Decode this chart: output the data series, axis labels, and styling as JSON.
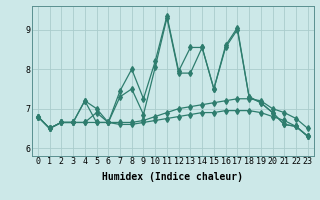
{
  "xlabel": "Humidex (Indice chaleur)",
  "xlim": [
    -0.5,
    23.5
  ],
  "ylim": [
    5.8,
    9.6
  ],
  "bg_color": "#cce8e8",
  "line_color": "#2e7d6e",
  "grid_color": "#aacccc",
  "series": [
    [
      6.8,
      6.5,
      6.65,
      6.65,
      6.65,
      6.9,
      6.65,
      6.65,
      6.65,
      6.7,
      6.8,
      6.9,
      7.0,
      7.05,
      7.1,
      7.15,
      7.2,
      7.25,
      7.25,
      7.2,
      7.0,
      6.9,
      6.75,
      6.5
    ],
    [
      6.8,
      6.5,
      6.65,
      6.65,
      6.65,
      6.65,
      6.65,
      6.6,
      6.6,
      6.65,
      6.7,
      6.75,
      6.8,
      6.85,
      6.9,
      6.9,
      6.95,
      6.95,
      6.95,
      6.9,
      6.8,
      6.7,
      6.55,
      6.3
    ],
    [
      6.8,
      6.5,
      6.65,
      6.65,
      7.2,
      7.0,
      6.65,
      7.45,
      8.0,
      7.25,
      8.2,
      9.35,
      7.95,
      8.55,
      8.55,
      7.5,
      8.6,
      9.05,
      7.3,
      7.15,
      6.9,
      6.6,
      6.55,
      6.3
    ],
    [
      6.8,
      6.5,
      6.65,
      6.65,
      7.2,
      6.65,
      6.65,
      7.3,
      7.5,
      6.85,
      8.05,
      9.3,
      7.9,
      7.9,
      8.55,
      7.5,
      8.55,
      9.0,
      7.3,
      7.15,
      6.9,
      6.6,
      6.55,
      6.3
    ]
  ],
  "marker": "d",
  "marker_size": 3,
  "line_width": 0.9,
  "xticks": [
    0,
    1,
    2,
    3,
    4,
    5,
    6,
    7,
    8,
    9,
    10,
    11,
    12,
    13,
    14,
    15,
    16,
    17,
    18,
    19,
    20,
    21,
    22,
    23
  ],
  "yticks": [
    6,
    7,
    8,
    9
  ],
  "tick_fontsize": 6,
  "label_fontsize": 7
}
